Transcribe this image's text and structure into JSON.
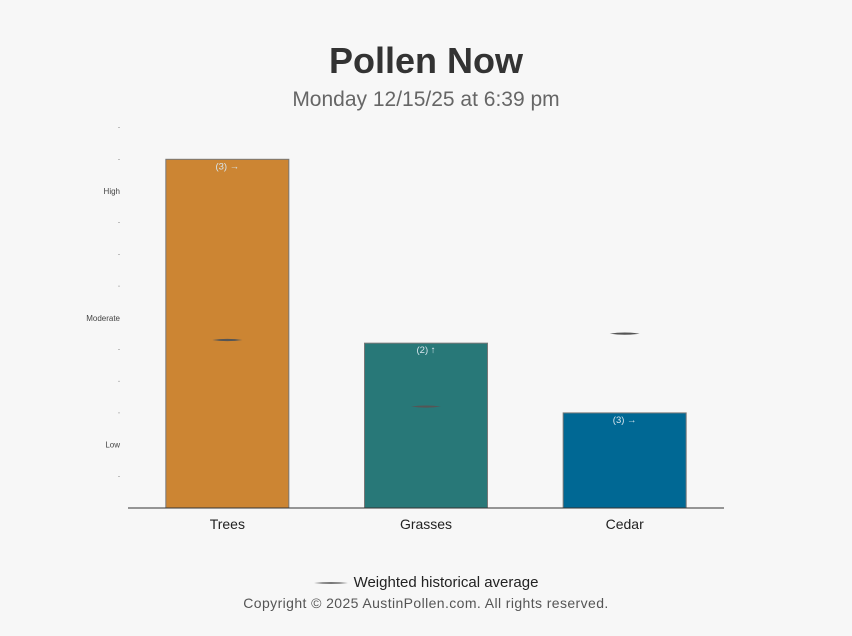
{
  "header": {
    "title": "Pollen Now",
    "subtitle": "Monday 12/15/25 at 6:39 pm"
  },
  "chart_data": {
    "type": "bar",
    "title": "Pollen Now",
    "subtitle": "Monday 12/15/25 at 6:39 pm",
    "categories": [
      "Trees",
      "Grasses",
      "Cedar"
    ],
    "values": [
      11,
      5.2,
      3.0
    ],
    "value_labels": [
      "(3) →",
      "(2) ↑",
      "(3) →"
    ],
    "historical_average": [
      5.3,
      3.2,
      5.5
    ],
    "colors": [
      "#cc8533",
      "#287878",
      "#006894"
    ],
    "ylim": [
      0,
      12
    ],
    "y_tick_labels": [
      {
        "value": 2,
        "label": "Low"
      },
      {
        "value": 6,
        "label": "Moderate"
      },
      {
        "value": 10,
        "label": "High"
      }
    ],
    "legend": "Weighted historical average",
    "grid": false
  },
  "footer": {
    "legend_label": "Weighted historical average",
    "copyright": "Copyright © 2025 AustinPollen.com.  All rights reserved."
  }
}
